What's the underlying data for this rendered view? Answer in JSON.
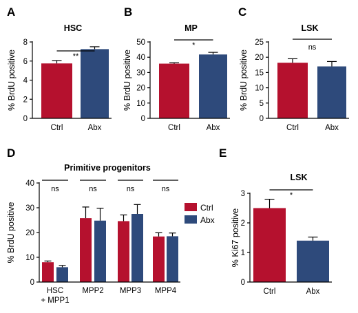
{
  "colors": {
    "ctrl": "#b5112e",
    "abx": "#2e4a7b"
  },
  "legend": {
    "items": [
      {
        "label": "Ctrl",
        "key": "ctrl"
      },
      {
        "label": "Abx",
        "key": "abx"
      }
    ]
  },
  "chart_data": [
    {
      "type": "bar",
      "panel": "A",
      "title": "HSC",
      "ylabel": "% BrdU positive",
      "ylim": [
        0,
        8
      ],
      "yticks": [
        0,
        2,
        4,
        6,
        8
      ],
      "categories": [
        "Ctrl",
        "Abx"
      ],
      "series": [
        {
          "values": [
            5.75,
            7.25
          ],
          "errors": [
            0.3,
            0.25
          ]
        }
      ],
      "significance": [
        {
          "label": "**",
          "from": 0,
          "to": 1
        }
      ]
    },
    {
      "type": "bar",
      "panel": "B",
      "title": "MP",
      "ylabel": "% BrdU positive",
      "ylim": [
        0,
        50
      ],
      "yticks": [
        0,
        10,
        20,
        30,
        40,
        50
      ],
      "categories": [
        "Ctrl",
        "Abx"
      ],
      "series": [
        {
          "values": [
            35.8,
            41.8
          ],
          "errors": [
            0.6,
            1.4
          ]
        }
      ],
      "significance": [
        {
          "label": "*",
          "from": 0,
          "to": 1
        }
      ]
    },
    {
      "type": "bar",
      "panel": "C",
      "title": "LSK",
      "ylabel": "% BrdU positive",
      "ylim": [
        0,
        25
      ],
      "yticks": [
        0,
        5,
        10,
        15,
        20,
        25
      ],
      "categories": [
        "Ctrl",
        "Abx"
      ],
      "series": [
        {
          "values": [
            18.2,
            17.0
          ],
          "errors": [
            1.3,
            1.6
          ]
        }
      ],
      "significance": [
        {
          "label": "ns",
          "from": 0,
          "to": 1
        }
      ]
    },
    {
      "type": "bar",
      "panel": "D",
      "title": "Primitive progenitors",
      "ylabel": "% BrdU positive",
      "ylim": [
        0,
        40
      ],
      "yticks": [
        0,
        10,
        20,
        30,
        40
      ],
      "categories": [
        "HSC\n+ MPP1",
        "MPP2",
        "MPP3",
        "MPP4"
      ],
      "series": [
        {
          "name": "Ctrl",
          "values": [
            8.0,
            25.8,
            24.6,
            18.4
          ],
          "errors": [
            0.5,
            4.5,
            2.5,
            1.5
          ]
        },
        {
          "name": "Abx",
          "values": [
            6.0,
            24.8,
            27.5,
            18.5
          ],
          "errors": [
            0.7,
            5.0,
            3.8,
            1.3
          ]
        }
      ],
      "significance": [
        {
          "label": "ns",
          "group": 0
        },
        {
          "label": "ns",
          "group": 1
        },
        {
          "label": "ns",
          "group": 2
        },
        {
          "label": "ns",
          "group": 3
        }
      ],
      "legend": "right"
    },
    {
      "type": "bar",
      "panel": "E",
      "title": "LSK",
      "ylabel": "% Ki67 positive",
      "ylim": [
        0,
        3
      ],
      "yticks": [
        0,
        1,
        2,
        3
      ],
      "categories": [
        "Ctrl",
        "Abx"
      ],
      "series": [
        {
          "values": [
            2.5,
            1.4
          ],
          "errors": [
            0.3,
            0.12
          ]
        }
      ],
      "significance": [
        {
          "label": "*",
          "from": 0,
          "to": 1
        }
      ]
    }
  ]
}
